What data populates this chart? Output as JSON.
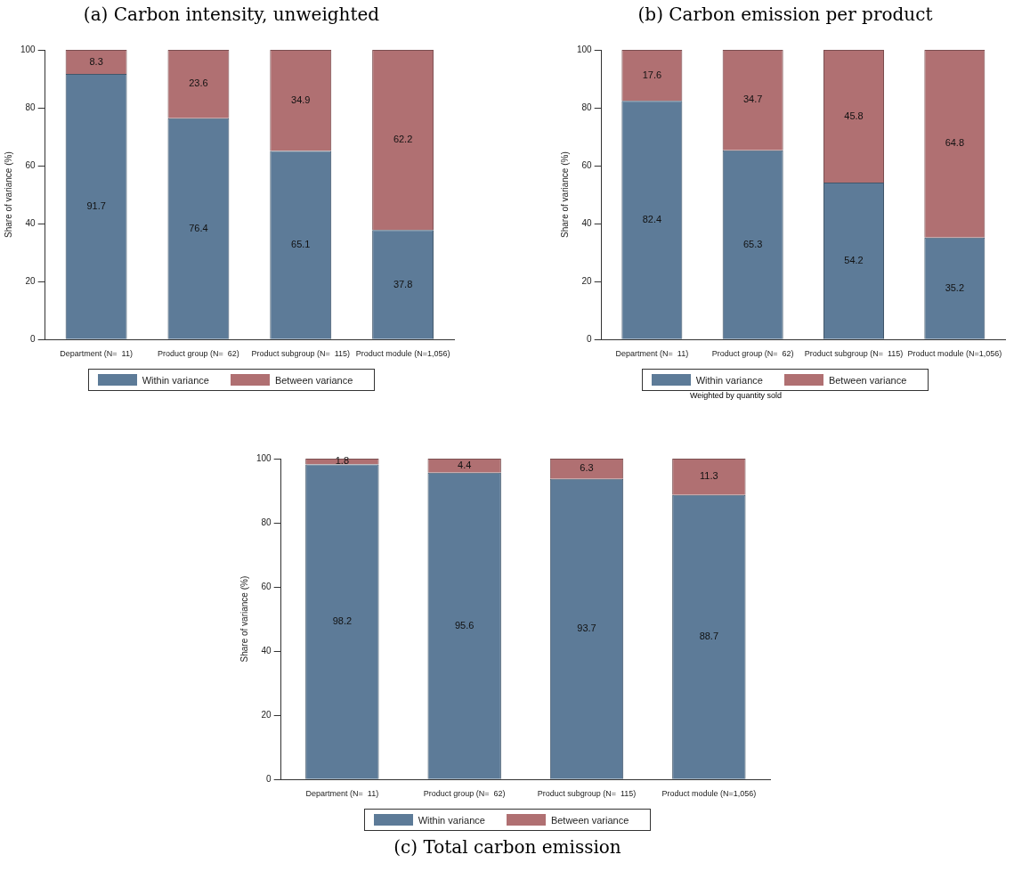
{
  "chart_data": [
    {
      "type": "bar",
      "title": "(a) Carbon intensity, unweighted",
      "ylabel": "Share of variance (%)",
      "categories": [
        "Department (N=  11)",
        "Product group (N=  62)",
        "Product subgroup (N=  115)",
        "Product module (N=1,056)"
      ],
      "stacked": true,
      "data_labels": true,
      "legend": "bottom",
      "grid": false,
      "ylim": [
        0,
        100
      ],
      "yticks": [
        0,
        20,
        40,
        60,
        80,
        100
      ],
      "series": [
        {
          "name": "Within variance",
          "color": "#5d7b98",
          "values": [
            91.7,
            76.4,
            65.1,
            37.8
          ]
        },
        {
          "name": "Between variance",
          "color": "#b07072",
          "values": [
            8.3,
            23.6,
            34.9,
            62.2
          ]
        }
      ]
    },
    {
      "type": "bar",
      "title": "(b) Carbon emission per product",
      "ylabel": "Share of variance (%)",
      "categories": [
        "Department (N=  11)",
        "Product group (N=  62)",
        "Product subgroup (N=  115)",
        "Product module (N=1,056)"
      ],
      "stacked": true,
      "data_labels": true,
      "legend": "bottom",
      "grid": false,
      "ylim": [
        0,
        100
      ],
      "yticks": [
        0,
        20,
        40,
        60,
        80,
        100
      ],
      "annotations": [
        "Weighted by quantity sold"
      ],
      "series": [
        {
          "name": "Within variance",
          "color": "#5d7b98",
          "values": [
            82.4,
            65.3,
            54.2,
            35.2
          ]
        },
        {
          "name": "Between variance",
          "color": "#b07072",
          "values": [
            17.6,
            34.7,
            45.8,
            64.8
          ]
        }
      ]
    },
    {
      "type": "bar",
      "title": "(c) Total carbon emission",
      "ylabel": "Share of variance (%)",
      "categories": [
        "Department (N=  11)",
        "Product group (N=  62)",
        "Product subgroup (N=  115)",
        "Product module (N=1,056)"
      ],
      "stacked": true,
      "data_labels": true,
      "legend": "bottom",
      "grid": false,
      "ylim": [
        0,
        100
      ],
      "yticks": [
        0,
        20,
        40,
        60,
        80,
        100
      ],
      "series": [
        {
          "name": "Within variance",
          "color": "#5d7b98",
          "values": [
            98.2,
            95.6,
            93.7,
            88.7
          ]
        },
        {
          "name": "Between variance",
          "color": "#b07072",
          "values": [
            1.8,
            4.4,
            6.3,
            11.3
          ]
        }
      ]
    }
  ]
}
